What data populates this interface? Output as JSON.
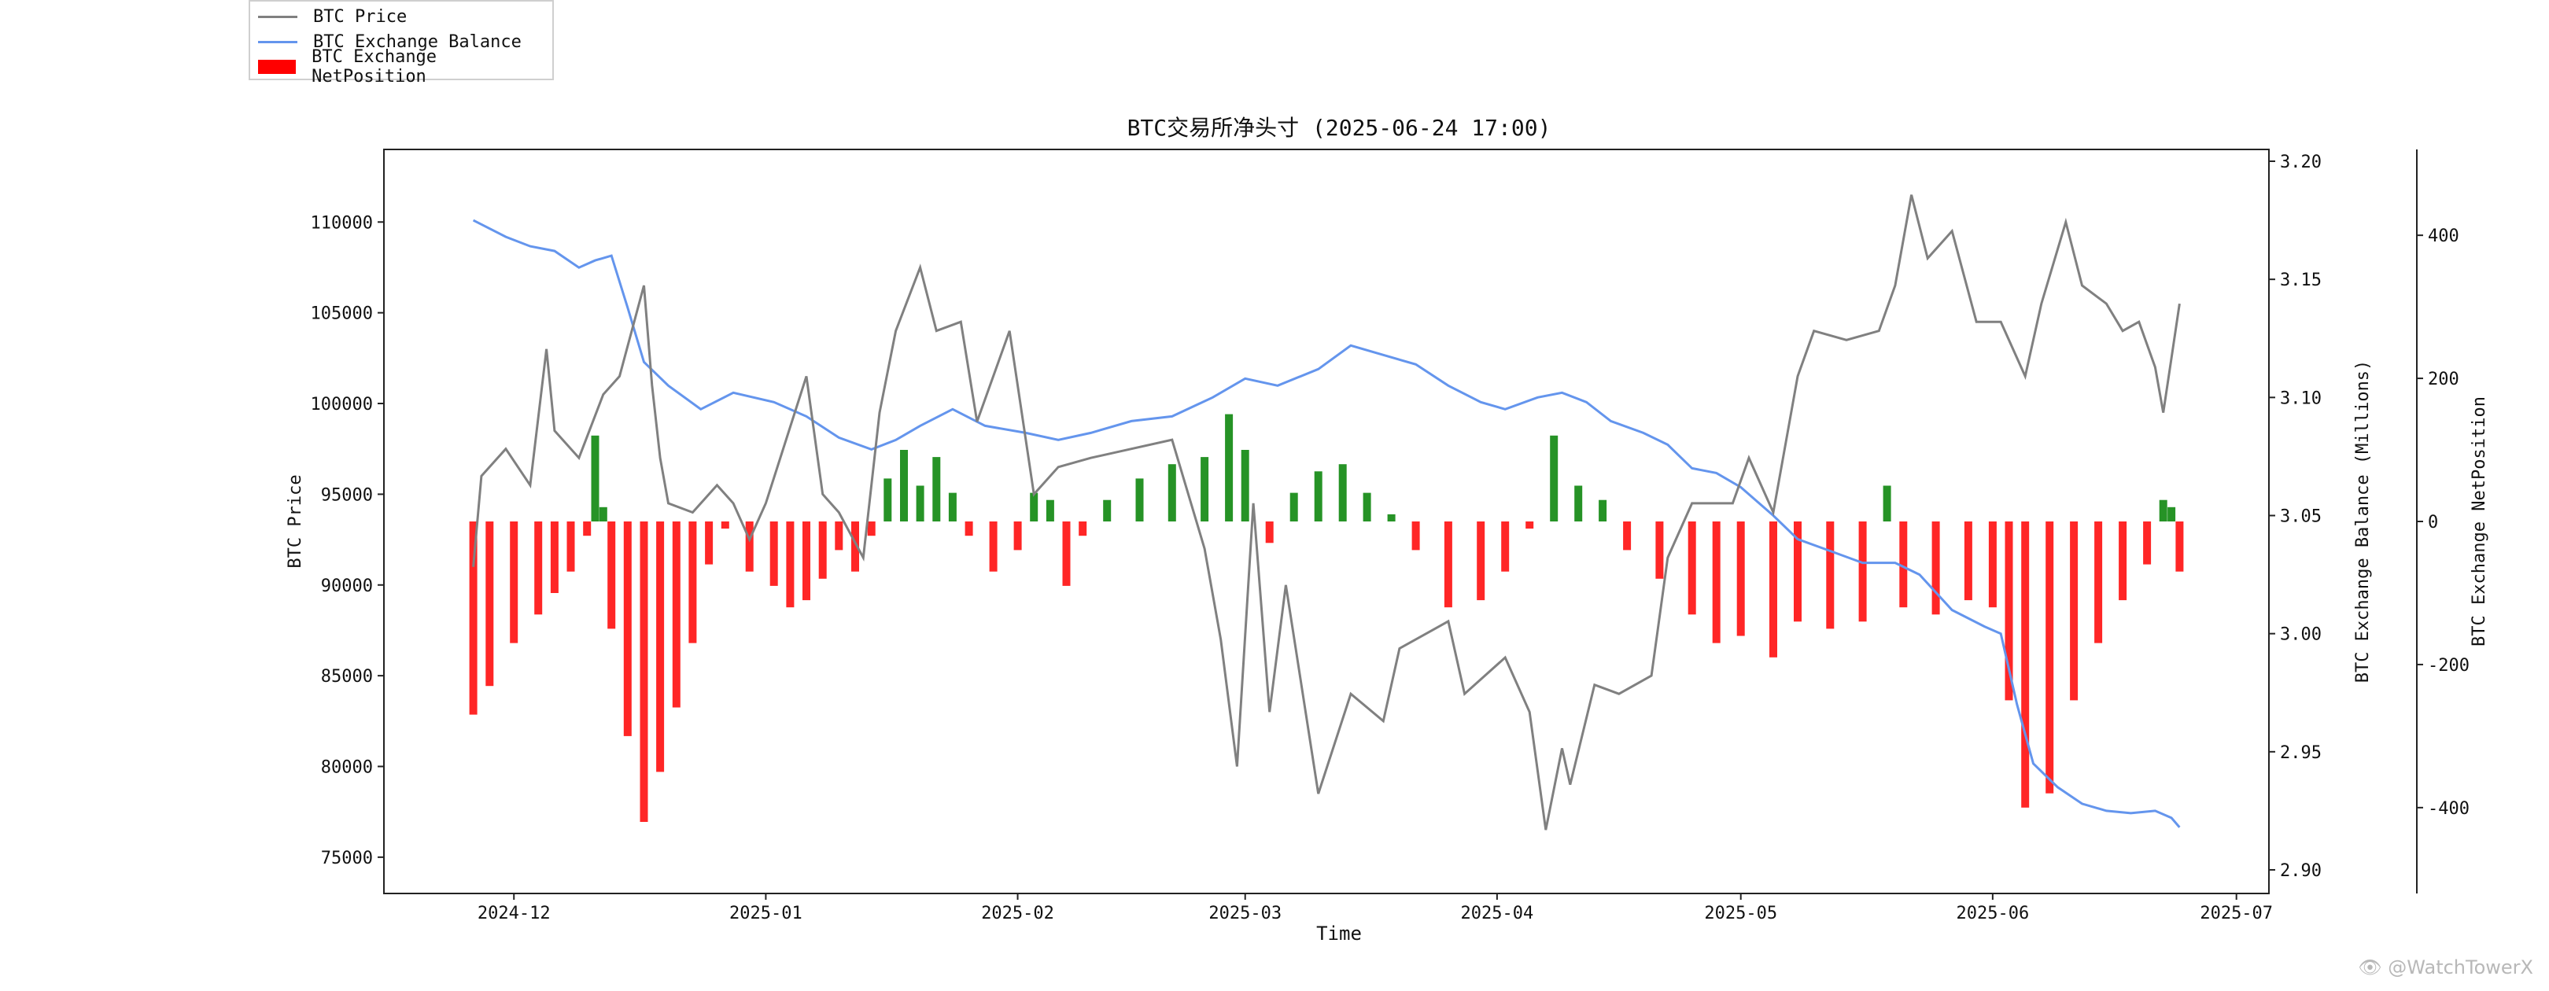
{
  "chart_data": {
    "type": "line",
    "title": "BTC交易所净头寸 (2025-06-24 17:00)",
    "xlabel": "Time",
    "x_ticks": [
      "2024-12",
      "2025-01",
      "2025-02",
      "2025-03",
      "2025-04",
      "2025-05",
      "2025-06",
      "2025-07"
    ],
    "x_tick_dates": [
      "2024-12-01",
      "2025-01-01",
      "2025-02-01",
      "2025-03-01",
      "2025-04-01",
      "2025-05-01",
      "2025-06-01",
      "2025-07-01"
    ],
    "xlim": [
      "2024-11-15",
      "2025-07-05"
    ],
    "grid": false,
    "legend_position": "top-left",
    "axes": {
      "price": {
        "label": "BTC Price",
        "ylim": [
          73000,
          114000
        ],
        "ticks": [
          75000,
          80000,
          85000,
          90000,
          95000,
          100000,
          105000,
          110000
        ]
      },
      "balance": {
        "label": "BTC Exchange Balance (Millions)",
        "ylim": [
          2.89,
          3.205
        ],
        "ticks": [
          "2.90",
          "2.95",
          "3.00",
          "3.05",
          "3.10",
          "3.15",
          "3.20"
        ],
        "tick_values": [
          2.9,
          2.95,
          3.0,
          3.05,
          3.1,
          3.15,
          3.2
        ]
      },
      "netposition": {
        "label": "BTC Exchange NetPosition",
        "ylim": [
          -520,
          520
        ],
        "ticks": [
          -400,
          -200,
          0,
          200,
          400
        ]
      }
    },
    "series": [
      {
        "name": "BTC Price",
        "axis": "price",
        "color": "#808080",
        "points": [
          [
            "2024-11-26",
            91000
          ],
          [
            "2024-11-27",
            96000
          ],
          [
            "2024-11-30",
            97500
          ],
          [
            "2024-12-03",
            95500
          ],
          [
            "2024-12-05",
            103000
          ],
          [
            "2024-12-06",
            98500
          ],
          [
            "2024-12-09",
            97000
          ],
          [
            "2024-12-12",
            100500
          ],
          [
            "2024-12-14",
            101500
          ],
          [
            "2024-12-17",
            106500
          ],
          [
            "2024-12-18",
            101000
          ],
          [
            "2024-12-19",
            97000
          ],
          [
            "2024-12-20",
            94500
          ],
          [
            "2024-12-23",
            94000
          ],
          [
            "2024-12-26",
            95500
          ],
          [
            "2024-12-28",
            94500
          ],
          [
            "2024-12-30",
            92500
          ],
          [
            "2025-01-01",
            94500
          ],
          [
            "2025-01-06",
            101500
          ],
          [
            "2025-01-08",
            95000
          ],
          [
            "2025-01-10",
            94000
          ],
          [
            "2025-01-13",
            91500
          ],
          [
            "2025-01-15",
            99500
          ],
          [
            "2025-01-17",
            104000
          ],
          [
            "2025-01-20",
            107500
          ],
          [
            "2025-01-22",
            104000
          ],
          [
            "2025-01-25",
            104500
          ],
          [
            "2025-01-27",
            99000
          ],
          [
            "2025-01-31",
            104000
          ],
          [
            "2025-02-03",
            95000
          ],
          [
            "2025-02-06",
            96500
          ],
          [
            "2025-02-10",
            97000
          ],
          [
            "2025-02-15",
            97500
          ],
          [
            "2025-02-20",
            98000
          ],
          [
            "2025-02-24",
            92000
          ],
          [
            "2025-02-26",
            87000
          ],
          [
            "2025-02-28",
            80000
          ],
          [
            "2025-03-02",
            94500
          ],
          [
            "2025-03-04",
            83000
          ],
          [
            "2025-03-06",
            90000
          ],
          [
            "2025-03-10",
            78500
          ],
          [
            "2025-03-14",
            84000
          ],
          [
            "2025-03-18",
            82500
          ],
          [
            "2025-03-20",
            86500
          ],
          [
            "2025-03-24",
            87500
          ],
          [
            "2025-03-26",
            88000
          ],
          [
            "2025-03-28",
            84000
          ],
          [
            "2025-04-02",
            86000
          ],
          [
            "2025-04-05",
            83000
          ],
          [
            "2025-04-07",
            76500
          ],
          [
            "2025-04-09",
            81000
          ],
          [
            "2025-04-10",
            79000
          ],
          [
            "2025-04-13",
            84500
          ],
          [
            "2025-04-16",
            84000
          ],
          [
            "2025-04-20",
            85000
          ],
          [
            "2025-04-22",
            91500
          ],
          [
            "2025-04-25",
            94500
          ],
          [
            "2025-04-30",
            94500
          ],
          [
            "2025-05-02",
            97000
          ],
          [
            "2025-05-05",
            94000
          ],
          [
            "2025-05-08",
            101500
          ],
          [
            "2025-05-10",
            104000
          ],
          [
            "2025-05-14",
            103500
          ],
          [
            "2025-05-18",
            104000
          ],
          [
            "2025-05-20",
            106500
          ],
          [
            "2025-05-22",
            111500
          ],
          [
            "2025-05-24",
            108000
          ],
          [
            "2025-05-27",
            109500
          ],
          [
            "2025-05-30",
            104500
          ],
          [
            "2025-06-02",
            104500
          ],
          [
            "2025-06-05",
            101500
          ],
          [
            "2025-06-07",
            105500
          ],
          [
            "2025-06-10",
            110000
          ],
          [
            "2025-06-12",
            106500
          ],
          [
            "2025-06-15",
            105500
          ],
          [
            "2025-06-17",
            104000
          ],
          [
            "2025-06-19",
            104500
          ],
          [
            "2025-06-21",
            102000
          ],
          [
            "2025-06-22",
            99500
          ],
          [
            "2025-06-23",
            102500
          ],
          [
            "2025-06-24",
            105500
          ]
        ]
      },
      {
        "name": "BTC Exchange Balance",
        "axis": "balance",
        "color": "#6495ed",
        "points": [
          [
            "2024-11-26",
            3.175
          ],
          [
            "2024-11-30",
            3.168
          ],
          [
            "2024-12-03",
            3.164
          ],
          [
            "2024-12-06",
            3.162
          ],
          [
            "2024-12-09",
            3.155
          ],
          [
            "2024-12-11",
            3.158
          ],
          [
            "2024-12-13",
            3.16
          ],
          [
            "2024-12-15",
            3.138
          ],
          [
            "2024-12-17",
            3.115
          ],
          [
            "2024-12-20",
            3.105
          ],
          [
            "2024-12-24",
            3.095
          ],
          [
            "2024-12-28",
            3.102
          ],
          [
            "2025-01-02",
            3.098
          ],
          [
            "2025-01-06",
            3.092
          ],
          [
            "2025-01-10",
            3.083
          ],
          [
            "2025-01-14",
            3.078
          ],
          [
            "2025-01-17",
            3.082
          ],
          [
            "2025-01-20",
            3.088
          ],
          [
            "2025-01-24",
            3.095
          ],
          [
            "2025-01-28",
            3.088
          ],
          [
            "2025-02-02",
            3.085
          ],
          [
            "2025-02-06",
            3.082
          ],
          [
            "2025-02-10",
            3.085
          ],
          [
            "2025-02-15",
            3.09
          ],
          [
            "2025-02-20",
            3.092
          ],
          [
            "2025-02-25",
            3.1
          ],
          [
            "2025-03-01",
            3.108
          ],
          [
            "2025-03-05",
            3.105
          ],
          [
            "2025-03-10",
            3.112
          ],
          [
            "2025-03-14",
            3.122
          ],
          [
            "2025-03-18",
            3.118
          ],
          [
            "2025-03-22",
            3.114
          ],
          [
            "2025-03-26",
            3.105
          ],
          [
            "2025-03-30",
            3.098
          ],
          [
            "2025-04-02",
            3.095
          ],
          [
            "2025-04-06",
            3.1
          ],
          [
            "2025-04-09",
            3.102
          ],
          [
            "2025-04-12",
            3.098
          ],
          [
            "2025-04-15",
            3.09
          ],
          [
            "2025-04-19",
            3.085
          ],
          [
            "2025-04-22",
            3.08
          ],
          [
            "2025-04-25",
            3.07
          ],
          [
            "2025-04-28",
            3.068
          ],
          [
            "2025-05-01",
            3.062
          ],
          [
            "2025-05-05",
            3.05
          ],
          [
            "2025-05-08",
            3.04
          ],
          [
            "2025-05-12",
            3.035
          ],
          [
            "2025-05-16",
            3.03
          ],
          [
            "2025-05-20",
            3.03
          ],
          [
            "2025-05-23",
            3.025
          ],
          [
            "2025-05-27",
            3.01
          ],
          [
            "2025-05-31",
            3.003
          ],
          [
            "2025-06-02",
            3.0
          ],
          [
            "2025-06-04",
            2.97
          ],
          [
            "2025-06-06",
            2.945
          ],
          [
            "2025-06-09",
            2.935
          ],
          [
            "2025-06-12",
            2.928
          ],
          [
            "2025-06-15",
            2.925
          ],
          [
            "2025-06-18",
            2.924
          ],
          [
            "2025-06-21",
            2.925
          ],
          [
            "2025-06-23",
            2.922
          ],
          [
            "2025-06-24",
            2.918
          ]
        ]
      },
      {
        "name": "BTC Exchange NetPosition",
        "axis": "netposition",
        "type": "bar",
        "positive_color": "#008000",
        "negative_color": "#ff0000",
        "points": [
          [
            "2024-11-26",
            -270
          ],
          [
            "2024-11-28",
            -230
          ],
          [
            "2024-12-01",
            -170
          ],
          [
            "2024-12-04",
            -130
          ],
          [
            "2024-12-06",
            -100
          ],
          [
            "2024-12-08",
            -70
          ],
          [
            "2024-12-10",
            -20
          ],
          [
            "2024-12-11",
            120
          ],
          [
            "2024-12-12",
            20
          ],
          [
            "2024-12-13",
            -150
          ],
          [
            "2024-12-15",
            -300
          ],
          [
            "2024-12-17",
            -420
          ],
          [
            "2024-12-19",
            -350
          ],
          [
            "2024-12-21",
            -260
          ],
          [
            "2024-12-23",
            -170
          ],
          [
            "2024-12-25",
            -60
          ],
          [
            "2024-12-27",
            -10
          ],
          [
            "2024-12-30",
            -70
          ],
          [
            "2025-01-02",
            -90
          ],
          [
            "2025-01-04",
            -120
          ],
          [
            "2025-01-06",
            -110
          ],
          [
            "2025-01-08",
            -80
          ],
          [
            "2025-01-10",
            -40
          ],
          [
            "2025-01-12",
            -70
          ],
          [
            "2025-01-14",
            -20
          ],
          [
            "2025-01-16",
            60
          ],
          [
            "2025-01-18",
            100
          ],
          [
            "2025-01-20",
            50
          ],
          [
            "2025-01-22",
            90
          ],
          [
            "2025-01-24",
            40
          ],
          [
            "2025-01-26",
            -20
          ],
          [
            "2025-01-29",
            -70
          ],
          [
            "2025-02-01",
            -40
          ],
          [
            "2025-02-03",
            40
          ],
          [
            "2025-02-05",
            30
          ],
          [
            "2025-02-07",
            -90
          ],
          [
            "2025-02-09",
            -20
          ],
          [
            "2025-02-12",
            30
          ],
          [
            "2025-02-16",
            60
          ],
          [
            "2025-02-20",
            80
          ],
          [
            "2025-02-24",
            90
          ],
          [
            "2025-02-27",
            150
          ],
          [
            "2025-03-01",
            100
          ],
          [
            "2025-03-04",
            -30
          ],
          [
            "2025-03-07",
            40
          ],
          [
            "2025-03-10",
            70
          ],
          [
            "2025-03-13",
            80
          ],
          [
            "2025-03-16",
            40
          ],
          [
            "2025-03-19",
            10
          ],
          [
            "2025-03-22",
            -40
          ],
          [
            "2025-03-26",
            -120
          ],
          [
            "2025-03-30",
            -110
          ],
          [
            "2025-04-02",
            -70
          ],
          [
            "2025-04-05",
            -10
          ],
          [
            "2025-04-08",
            120
          ],
          [
            "2025-04-11",
            50
          ],
          [
            "2025-04-14",
            30
          ],
          [
            "2025-04-17",
            -40
          ],
          [
            "2025-04-21",
            -80
          ],
          [
            "2025-04-25",
            -130
          ],
          [
            "2025-04-28",
            -170
          ],
          [
            "2025-05-01",
            -160
          ],
          [
            "2025-05-05",
            -190
          ],
          [
            "2025-05-08",
            -140
          ],
          [
            "2025-05-12",
            -150
          ],
          [
            "2025-05-16",
            -140
          ],
          [
            "2025-05-19",
            50
          ],
          [
            "2025-05-21",
            -120
          ],
          [
            "2025-05-25",
            -130
          ],
          [
            "2025-05-29",
            -110
          ],
          [
            "2025-06-01",
            -120
          ],
          [
            "2025-06-03",
            -250
          ],
          [
            "2025-06-05",
            -400
          ],
          [
            "2025-06-08",
            -380
          ],
          [
            "2025-06-11",
            -250
          ],
          [
            "2025-06-14",
            -170
          ],
          [
            "2025-06-17",
            -110
          ],
          [
            "2025-06-20",
            -60
          ],
          [
            "2025-06-22",
            30
          ],
          [
            "2025-06-23",
            20
          ],
          [
            "2025-06-24",
            -70
          ]
        ]
      }
    ]
  }
}
